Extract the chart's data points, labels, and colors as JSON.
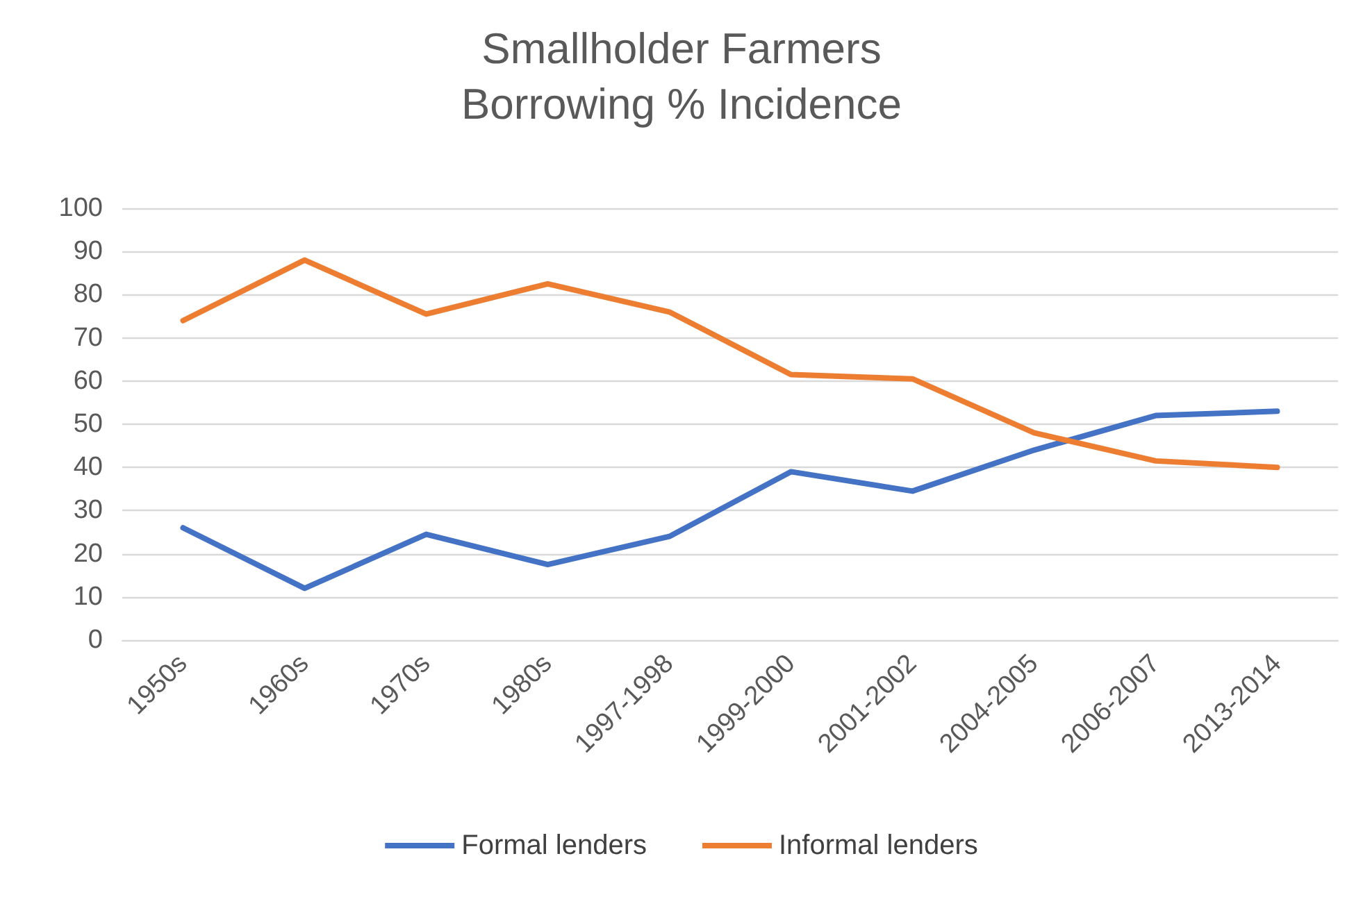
{
  "chart_data": {
    "type": "line",
    "title": "Smallholder Farmers\nBorrowing % Incidence",
    "categories": [
      "1950s",
      "1960s",
      "1970s",
      "1980s",
      "1997-1998",
      "1999-2000",
      "2001-2002",
      "2004-2005",
      "2006-2007",
      "2013-2014"
    ],
    "series": [
      {
        "name": "Formal lenders",
        "color": "#4472c4",
        "values": [
          26,
          12,
          24.5,
          17.5,
          24,
          39,
          34.5,
          44,
          52,
          53
        ]
      },
      {
        "name": "Informal lenders",
        "color": "#ed7d31",
        "values": [
          74,
          88,
          75.5,
          82.5,
          76,
          61.5,
          60.5,
          48,
          41.5,
          40
        ]
      }
    ],
    "ylim": [
      0,
      100
    ],
    "yticks": [
      0,
      10,
      20,
      30,
      40,
      50,
      60,
      70,
      80,
      90,
      100
    ],
    "grid": "y",
    "legend": "bottom",
    "marker": "none",
    "line_style": "solid"
  }
}
